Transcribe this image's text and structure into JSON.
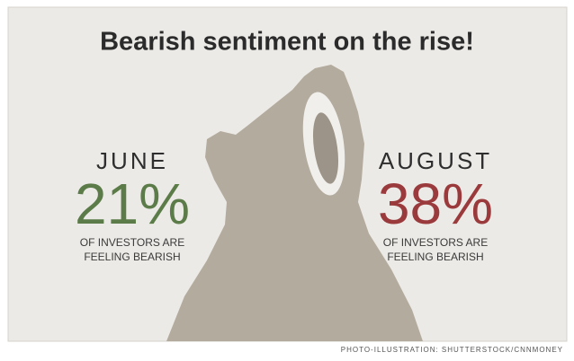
{
  "title": "Bearish sentiment on the rise!",
  "panels": [
    {
      "label": "JUNE",
      "value": "21%",
      "caption": [
        "OF INVESTORS ARE",
        "FEELING BEARISH"
      ]
    },
    {
      "label": "AUGUST",
      "value": "38%",
      "caption": [
        "OF INVESTORS ARE",
        "FEELING BEARISH"
      ]
    }
  ],
  "credit": "PHOTO-ILLUSTRATION: SHUTTERSTOCK/CNNMONEY"
}
